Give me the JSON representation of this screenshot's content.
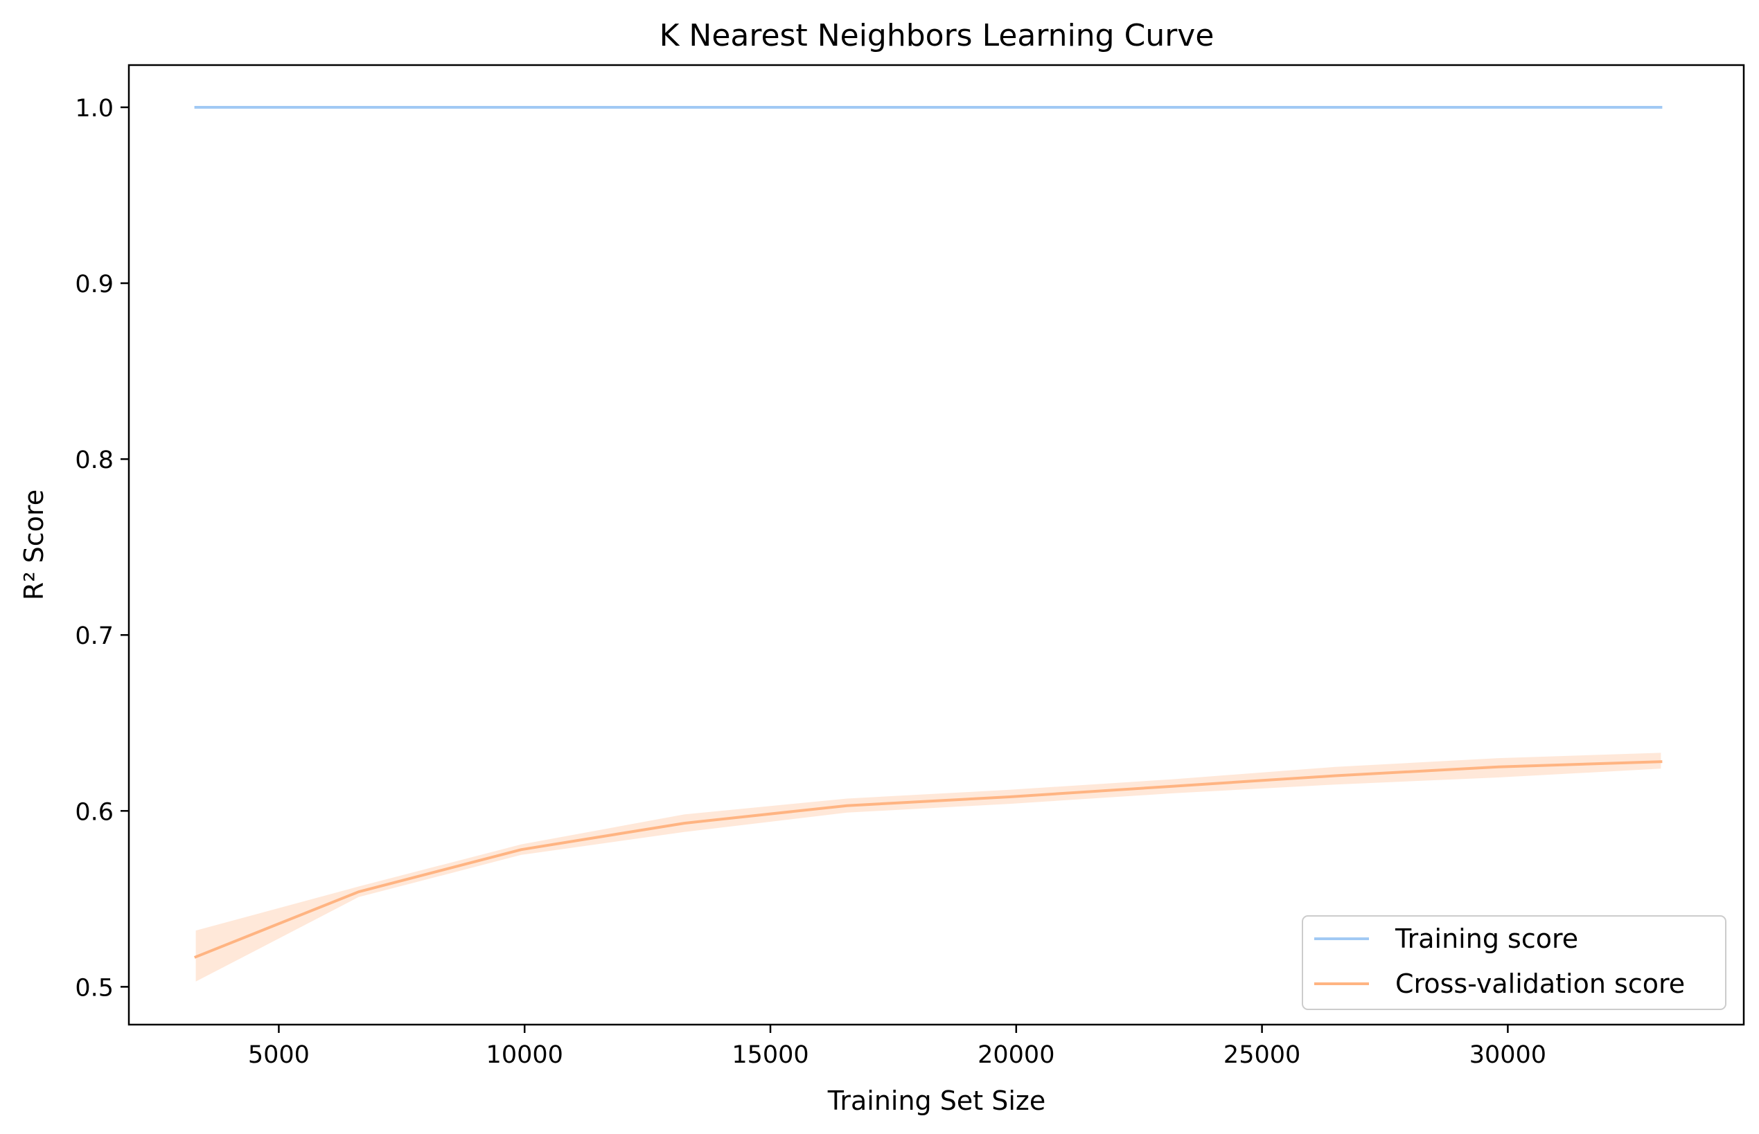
{
  "chart_data": {
    "type": "line",
    "title": "K Nearest Neighbors Learning Curve",
    "xlabel": "Training Set Size",
    "ylabel": "R² Score",
    "xlim": [
      1950,
      34800
    ],
    "ylim": [
      0.4785,
      1.024
    ],
    "xticks": [
      5000,
      10000,
      15000,
      20000,
      25000,
      30000
    ],
    "yticks": [
      0.5,
      0.6,
      0.7,
      0.8,
      0.9,
      1.0
    ],
    "xtick_labels": [
      "5000",
      "10000",
      "15000",
      "20000",
      "25000",
      "30000"
    ],
    "ytick_labels": [
      "0.5",
      "0.6",
      "0.7",
      "0.8",
      "0.9",
      "1.0"
    ],
    "grid": false,
    "legend_position": "lower-right",
    "x": [
      3311,
      6623,
      9934,
      13246,
      16557,
      19868,
      23180,
      26491,
      29803,
      33114
    ],
    "series": [
      {
        "name": "Training score",
        "color": "#a1c9f4",
        "values": [
          1.0,
          1.0,
          1.0,
          1.0,
          1.0,
          1.0,
          1.0,
          1.0,
          1.0,
          1.0
        ],
        "band_lower": [
          1.0,
          1.0,
          1.0,
          1.0,
          1.0,
          1.0,
          1.0,
          1.0,
          1.0,
          1.0
        ],
        "band_upper": [
          1.0,
          1.0,
          1.0,
          1.0,
          1.0,
          1.0,
          1.0,
          1.0,
          1.0,
          1.0
        ]
      },
      {
        "name": "Cross-validation score",
        "color": "#ffb482",
        "values": [
          0.517,
          0.554,
          0.578,
          0.593,
          0.603,
          0.608,
          0.614,
          0.62,
          0.625,
          0.628
        ],
        "band_lower": [
          0.503,
          0.551,
          0.575,
          0.588,
          0.599,
          0.604,
          0.61,
          0.615,
          0.619,
          0.624
        ],
        "band_upper": [
          0.532,
          0.557,
          0.581,
          0.598,
          0.607,
          0.612,
          0.618,
          0.625,
          0.63,
          0.633
        ]
      }
    ]
  }
}
